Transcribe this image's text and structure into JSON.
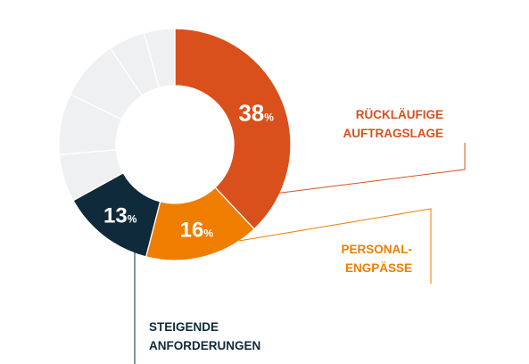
{
  "chart_data": {
    "type": "pie",
    "slices": [
      {
        "value": 38,
        "display": "38",
        "unit": "%",
        "label_lines": [
          "RÜCKLÄUFIGE",
          "AUFTRAGSLAGE"
        ],
        "color": "#d9501c"
      },
      {
        "value": 16,
        "display": "16",
        "unit": "%",
        "label_lines": [
          "PERSONAL-",
          "ENGPÄSSE"
        ],
        "color": "#ef7d00"
      },
      {
        "value": 13,
        "display": "13",
        "unit": "%",
        "label_lines": [
          "STEIGENDE",
          "ANFORDERUNGEN"
        ],
        "color": "#0e2a3b"
      },
      {
        "value": 6.6,
        "display": "",
        "label_lines": [],
        "color": "#eef0f1"
      },
      {
        "value": 8.5,
        "display": "",
        "label_lines": [],
        "color": "#eef0f1"
      },
      {
        "value": 8.5,
        "display": "",
        "label_lines": [],
        "color": "#eef0f1"
      },
      {
        "value": 5.1,
        "display": "",
        "label_lines": [],
        "color": "#eef0f1"
      },
      {
        "value": 4.3,
        "display": "",
        "label_lines": [],
        "color": "#eef0f1"
      }
    ],
    "hole": "donut"
  }
}
